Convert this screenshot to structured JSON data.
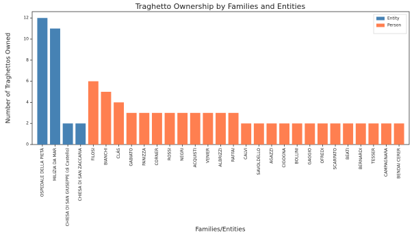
{
  "chart_data": {
    "type": "bar",
    "title": "Traghetto Ownership by Families and Entities",
    "x_label": "Families/Entities",
    "y_label": "Number of Traghettos Owned",
    "categories": [
      "OSPEDALE DELLA PIETÀ",
      "MILIZIA DA MAR",
      "CHIESA DI SAN GIUSEPPE (di Castello)",
      "CHIESA DI SAN ZACCARIA",
      "FILOSI",
      "BIANCHI",
      "CLÁS",
      "GABIATO",
      "PANIZZA",
      "CORNER",
      "ROSSI",
      "NEGRI",
      "ACQUISTI",
      "VENIER",
      "ALBRIZZI",
      "RAFFAI",
      "CALVI",
      "SAVOLDELLO",
      "AGAZZI",
      "CIGOGNA",
      "BOLLINI",
      "GAGGIO",
      "OFREDI",
      "SCARPATO",
      "BEATI",
      "BERNARDI",
      "TESSER",
      "CAMPAGNARA",
      "BENDAI CERER"
    ],
    "series": [
      {
        "name": "Entity",
        "color": "#4682b4",
        "values": [
          12,
          11,
          2,
          2,
          null,
          null,
          null,
          null,
          null,
          null,
          null,
          null,
          null,
          null,
          null,
          null,
          null,
          null,
          null,
          null,
          null,
          null,
          null,
          null,
          null,
          null,
          null,
          null,
          null
        ]
      },
      {
        "name": "Person",
        "color": "#ff7f50",
        "values": [
          null,
          null,
          null,
          null,
          6,
          5,
          4,
          3,
          3,
          3,
          3,
          3,
          3,
          3,
          3,
          3,
          2,
          2,
          2,
          2,
          2,
          2,
          2,
          2,
          2,
          2,
          2,
          2,
          2
        ]
      }
    ],
    "ylim": [
      0,
      12.6
    ],
    "yticks": [
      0,
      2,
      4,
      6,
      8,
      10,
      12
    ],
    "legend": "upper right"
  }
}
